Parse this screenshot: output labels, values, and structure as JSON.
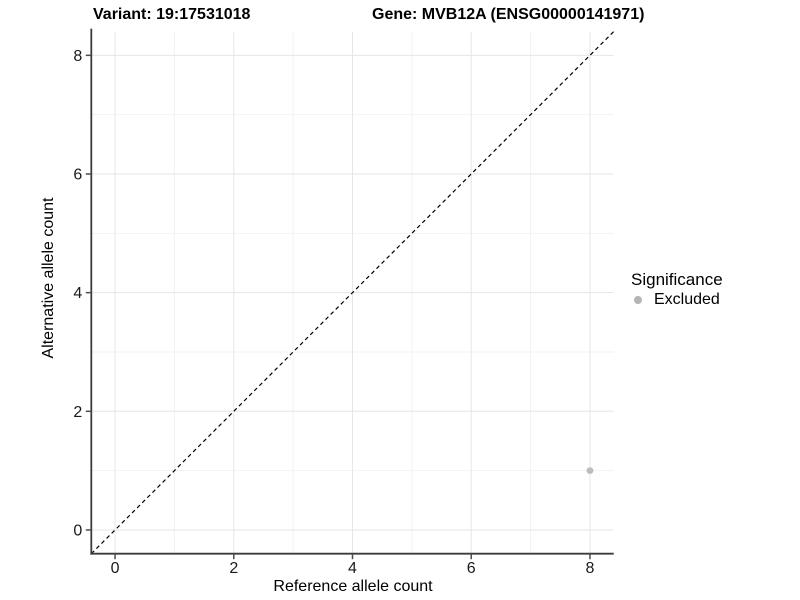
{
  "header": {
    "title_left": "Variant: 19:17531018",
    "title_right": "Gene: MVB12A (ENSG00000141971)"
  },
  "chart_data": {
    "type": "scatter",
    "xlabel": "Reference allele count",
    "ylabel": "Alternative allele count",
    "xlim": [
      -0.4,
      8.4
    ],
    "ylim": [
      -0.4,
      8.4
    ],
    "x_ticks": [
      0,
      2,
      4,
      6,
      8
    ],
    "y_ticks": [
      0,
      2,
      4,
      6,
      8
    ],
    "x_minor_ticks": [
      1,
      3,
      5,
      7
    ],
    "y_minor_ticks": [
      1,
      3,
      5,
      7
    ],
    "grid": true,
    "points": [
      {
        "x": 8,
        "y": 1,
        "significance": "Excluded"
      }
    ],
    "reference_line": {
      "type": "identity",
      "slope": 1,
      "intercept": 0,
      "style": "dashed",
      "color": "#000000"
    },
    "legend": {
      "title": "Significance",
      "position": "right",
      "items": [
        {
          "label": "Excluded",
          "color": "#b5b5b5"
        }
      ]
    },
    "colors": {
      "point": "#bcbcbc",
      "grid_major": "#e6e6e6",
      "grid_minor": "#f2f2f2",
      "axis_line": "#3c3c3c",
      "tick_mark": "#4d4d4d",
      "tick_label": "#1a1a1a",
      "background": "#ffffff"
    }
  }
}
